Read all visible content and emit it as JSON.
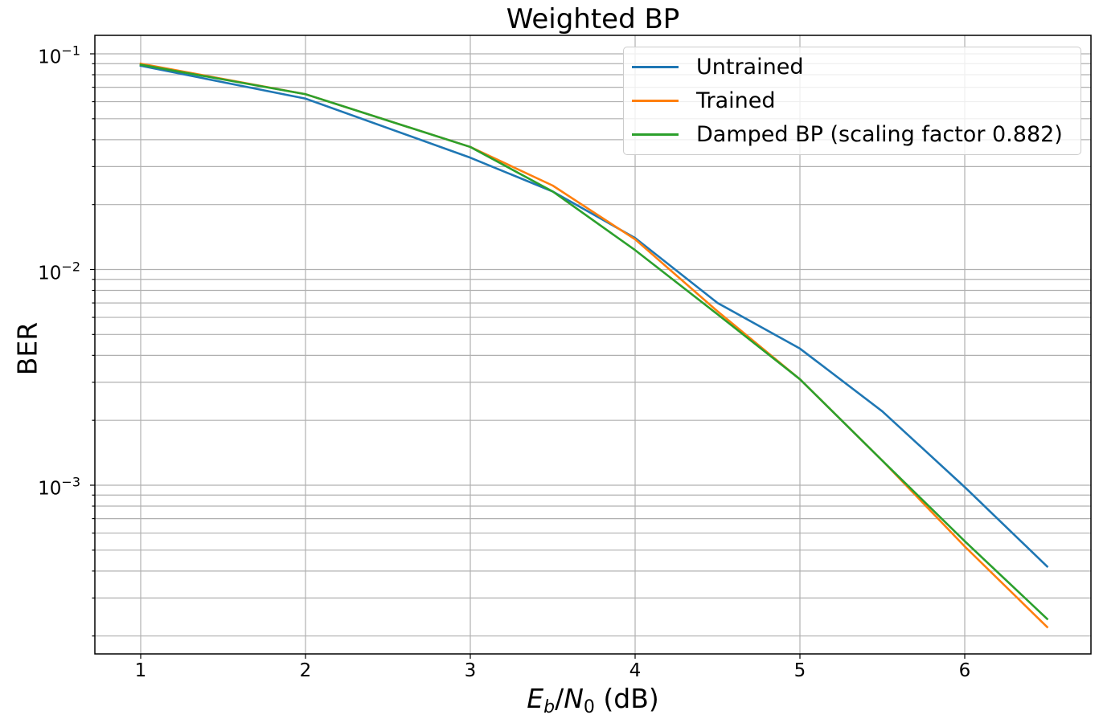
{
  "chart_data": {
    "type": "line",
    "title": "Weighted BP",
    "xlabel": "E_b/N_0 (dB)",
    "ylabel": "BER",
    "yscale": "log",
    "xlim": [
      0.72,
      6.78
    ],
    "ylim": [
      0.00017,
      0.125
    ],
    "grid": true,
    "grid_minor_y": true,
    "legend_position": "upper right",
    "x": [
      1,
      2,
      3,
      3.5,
      4,
      4.5,
      5,
      5.5,
      6,
      6.5
    ],
    "xticks": [
      1,
      2,
      3,
      4,
      5,
      6
    ],
    "yticks": [
      {
        "value": 0.1,
        "base": "10",
        "exp": "−1"
      },
      {
        "value": 0.01,
        "base": "10",
        "exp": "−2"
      },
      {
        "value": 0.001,
        "base": "10",
        "exp": "−3"
      }
    ],
    "series": [
      {
        "name": "Untrained",
        "color": "#1f77b4",
        "values": [
          0.088,
          0.062,
          0.033,
          0.023,
          0.014,
          0.007,
          0.0043,
          0.0022,
          0.00098,
          0.00042
        ]
      },
      {
        "name": "Trained",
        "color": "#ff7f0e",
        "values": [
          0.09,
          0.065,
          0.037,
          0.0245,
          0.0138,
          0.0064,
          0.0031,
          0.0013,
          0.00052,
          0.00022
        ]
      },
      {
        "name": "Damped BP (scaling factor 0.882)",
        "color": "#2ca02c",
        "values": [
          0.089,
          0.065,
          0.037,
          0.023,
          0.0123,
          0.0062,
          0.0031,
          0.0013,
          0.00055,
          0.00024
        ]
      }
    ]
  },
  "labels": {
    "title": "Weighted BP",
    "ylabel": "BER",
    "xlabel_E": "E",
    "xlabel_b": "b",
    "xlabel_slash": "/",
    "xlabel_N": "N",
    "xlabel_0": "0",
    "xlabel_unit": " (dB)"
  },
  "legend": [
    {
      "label": "Untrained",
      "color": "#1f77b4"
    },
    {
      "label": "Trained",
      "color": "#ff7f0e"
    },
    {
      "label": "Damped BP (scaling factor 0.882)",
      "color": "#2ca02c"
    }
  ]
}
